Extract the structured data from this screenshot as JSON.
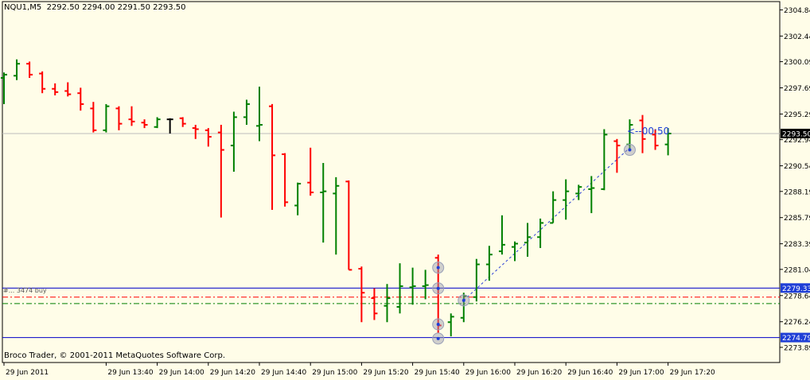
{
  "header": {
    "symbol": "NQU1,M5",
    "ohlc": "2292.50 2294.00 2291.50 2293.50"
  },
  "footer": {
    "copyright": "Broco Trader, © 2001-2011 MetaQuotes Software Corp."
  },
  "countdown": "<--00:50",
  "order_label": "#... 3474 buy",
  "colors": {
    "background": "#fffde8",
    "bull": "#008000",
    "bear": "#ff0000",
    "neutral": "#000000",
    "level_line": "#0000c8",
    "price_label_bg": "#1f3fd6",
    "current_label_bg": "#000000"
  },
  "chart_data": {
    "type": "ohlc",
    "y_ticks": [
      "2304.84",
      "2302.44",
      "2300.09",
      "2297.69",
      "2295.29",
      "2292.94",
      "2290.54",
      "2288.19",
      "2285.79",
      "2283.39",
      "2281.04",
      "2278.64",
      "2276.24",
      "2273.89"
    ],
    "ylim": [
      2272.5,
      2305.6
    ],
    "x_ticks": [
      {
        "label": "29 Jun 2011",
        "bar": 0
      },
      {
        "label": "29 Jun 13:40",
        "bar": 8
      },
      {
        "label": "29 Jun 14:00",
        "bar": 12
      },
      {
        "label": "29 Jun 14:20",
        "bar": 16
      },
      {
        "label": "29 Jun 14:40",
        "bar": 20
      },
      {
        "label": "29 Jun 15:00",
        "bar": 24
      },
      {
        "label": "29 Jun 15:20",
        "bar": 28
      },
      {
        "label": "29 Jun 15:40",
        "bar": 32
      },
      {
        "label": "29 Jun 16:00",
        "bar": 36
      },
      {
        "label": "29 Jun 16:20",
        "bar": 40
      },
      {
        "label": "29 Jun 16:40",
        "bar": 44
      },
      {
        "label": "29 Jun 17:00",
        "bar": 48
      },
      {
        "label": "29 Jun 17:20",
        "bar": 52
      }
    ],
    "bars": [
      {
        "o": 2298.6,
        "h": 2299.1,
        "l": 2296.2,
        "c": 2298.9
      },
      {
        "o": 2298.8,
        "h": 2300.3,
        "l": 2298.4,
        "c": 2299.9
      },
      {
        "o": 2299.9,
        "h": 2300.1,
        "l": 2298.6,
        "c": 2298.9
      },
      {
        "o": 2299.0,
        "h": 2299.2,
        "l": 2297.2,
        "c": 2297.6
      },
      {
        "o": 2297.6,
        "h": 2298.1,
        "l": 2297.0,
        "c": 2297.3
      },
      {
        "o": 2297.4,
        "h": 2298.2,
        "l": 2296.9,
        "c": 2297.1
      },
      {
        "o": 2297.2,
        "h": 2297.7,
        "l": 2295.6,
        "c": 2296.2
      },
      {
        "o": 2295.8,
        "h": 2296.4,
        "l": 2293.6,
        "c": 2293.8
      },
      {
        "o": 2293.8,
        "h": 2296.2,
        "l": 2293.6,
        "c": 2296.0
      },
      {
        "o": 2295.8,
        "h": 2296.0,
        "l": 2293.8,
        "c": 2294.4
      },
      {
        "o": 2294.8,
        "h": 2296.0,
        "l": 2294.2,
        "c": 2294.6
      },
      {
        "o": 2294.5,
        "h": 2294.8,
        "l": 2294.0,
        "c": 2294.3
      },
      {
        "o": 2294.1,
        "h": 2295.0,
        "l": 2294.0,
        "c": 2294.8
      },
      {
        "o": 2294.8,
        "h": 2294.9,
        "l": 2293.5,
        "c": 2294.8
      },
      {
        "o": 2294.9,
        "h": 2295.0,
        "l": 2294.1,
        "c": 2294.4
      },
      {
        "o": 2294.0,
        "h": 2294.3,
        "l": 2293.0,
        "c": 2293.9
      },
      {
        "o": 2293.8,
        "h": 2294.0,
        "l": 2292.3,
        "c": 2293.2
      },
      {
        "o": 2293.6,
        "h": 2294.3,
        "l": 2285.8,
        "c": 2292.0
      },
      {
        "o": 2292.4,
        "h": 2295.5,
        "l": 2290.0,
        "c": 2295.0
      },
      {
        "o": 2295.0,
        "h": 2296.6,
        "l": 2294.3,
        "c": 2296.2
      },
      {
        "o": 2294.2,
        "h": 2297.8,
        "l": 2292.8,
        "c": 2294.3
      },
      {
        "o": 2296.0,
        "h": 2296.2,
        "l": 2286.5,
        "c": 2291.5
      },
      {
        "o": 2291.6,
        "h": 2291.7,
        "l": 2286.8,
        "c": 2287.2
      },
      {
        "o": 2286.9,
        "h": 2289.0,
        "l": 2286.0,
        "c": 2288.9
      },
      {
        "o": 2289.0,
        "h": 2292.2,
        "l": 2287.8,
        "c": 2288.1
      },
      {
        "o": 2288.1,
        "h": 2290.8,
        "l": 2283.5,
        "c": 2288.2
      },
      {
        "o": 2288.0,
        "h": 2289.5,
        "l": 2282.4,
        "c": 2288.7
      },
      {
        "o": 2289.1,
        "h": 2289.2,
        "l": 2281.0,
        "c": 2281.0
      },
      {
        "o": 2281.1,
        "h": 2281.3,
        "l": 2276.2,
        "c": 2278.9
      },
      {
        "o": 2278.4,
        "h": 2279.3,
        "l": 2276.4,
        "c": 2277.0
      },
      {
        "o": 2277.7,
        "h": 2279.7,
        "l": 2276.2,
        "c": 2278.4
      },
      {
        "o": 2277.6,
        "h": 2281.6,
        "l": 2277.0,
        "c": 2279.5
      },
      {
        "o": 2279.4,
        "h": 2281.2,
        "l": 2277.8,
        "c": 2279.5
      },
      {
        "o": 2279.5,
        "h": 2281.0,
        "l": 2278.3,
        "c": 2279.6
      },
      {
        "o": 2282.1,
        "h": 2282.4,
        "l": 2275.2,
        "c": 2275.9
      },
      {
        "o": 2276.2,
        "h": 2277.0,
        "l": 2274.9,
        "c": 2276.7
      },
      {
        "o": 2276.6,
        "h": 2278.9,
        "l": 2276.2,
        "c": 2278.6
      },
      {
        "o": 2278.5,
        "h": 2282.0,
        "l": 2278.1,
        "c": 2281.5
      },
      {
        "o": 2281.5,
        "h": 2283.2,
        "l": 2280.0,
        "c": 2282.4
      },
      {
        "o": 2282.7,
        "h": 2286.0,
        "l": 2282.4,
        "c": 2283.3
      },
      {
        "o": 2283.1,
        "h": 2283.6,
        "l": 2281.8,
        "c": 2283.4
      },
      {
        "o": 2283.5,
        "h": 2285.3,
        "l": 2282.2,
        "c": 2284.0
      },
      {
        "o": 2284.0,
        "h": 2285.7,
        "l": 2283.0,
        "c": 2285.3
      },
      {
        "o": 2285.3,
        "h": 2288.2,
        "l": 2285.3,
        "c": 2287.4
      },
      {
        "o": 2287.4,
        "h": 2289.3,
        "l": 2285.6,
        "c": 2288.2
      },
      {
        "o": 2288.0,
        "h": 2288.8,
        "l": 2287.4,
        "c": 2288.6
      },
      {
        "o": 2288.4,
        "h": 2289.6,
        "l": 2286.2,
        "c": 2288.5
      },
      {
        "o": 2288.4,
        "h": 2293.9,
        "l": 2288.3,
        "c": 2293.4
      },
      {
        "o": 2292.8,
        "h": 2293.0,
        "l": 2289.9,
        "c": 2292.4
      },
      {
        "o": 2292.5,
        "h": 2294.8,
        "l": 2292.1,
        "c": 2294.3
      },
      {
        "o": 2294.7,
        "h": 2295.2,
        "l": 2291.7,
        "c": 2293.0
      },
      {
        "o": 2293.4,
        "h": 2293.9,
        "l": 2292.0,
        "c": 2292.4
      },
      {
        "o": 2292.5,
        "h": 2294.0,
        "l": 2291.5,
        "c": 2293.5
      }
    ],
    "current_price": {
      "value": 2293.5,
      "label": "2293.50"
    },
    "price_levels": [
      {
        "value": 2279.33,
        "label": "2279.33",
        "style": "solid"
      },
      {
        "value": 2274.79,
        "label": "2274.79",
        "style": "solid"
      }
    ],
    "order_lines": [
      {
        "value": 2278.5,
        "color": "#ff0000",
        "style": "dashdot"
      },
      {
        "value": 2277.9,
        "color": "#008000",
        "style": "dashdot"
      }
    ],
    "trendline": {
      "from": {
        "bar": 36,
        "price": 2278.2
      },
      "to": {
        "bar": 49,
        "price": 2292.2
      }
    },
    "markers": [
      {
        "bar": 34,
        "price": 2281.2
      },
      {
        "bar": 34,
        "price": 2279.3
      },
      {
        "bar": 34,
        "price": 2276.0
      },
      {
        "bar": 34,
        "price": 2274.7
      },
      {
        "bar": 36,
        "price": 2278.2
      },
      {
        "bar": 49,
        "price": 2292.0
      }
    ]
  }
}
